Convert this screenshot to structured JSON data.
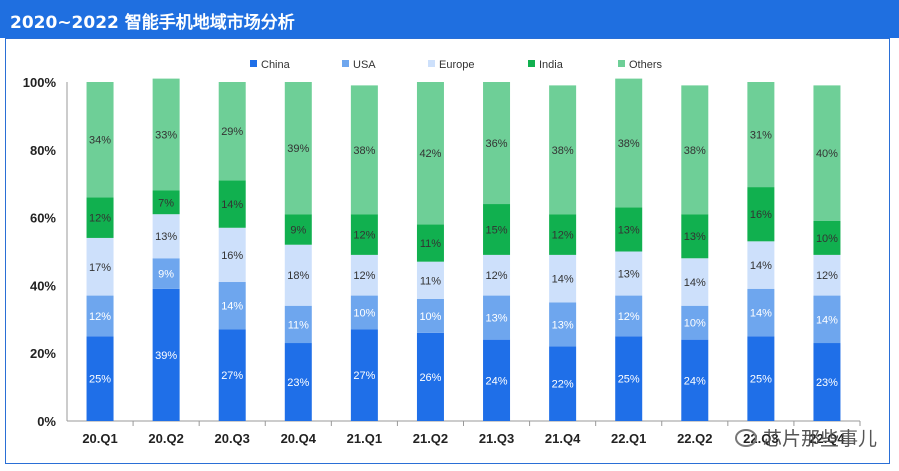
{
  "title": "2020~2022 智能手机地域市场分析",
  "watermark": "芯片那些事儿",
  "chart_data": {
    "type": "bar",
    "stacked": true,
    "percent": true,
    "categories": [
      "20.Q1",
      "20.Q2",
      "20.Q3",
      "20.Q4",
      "21.Q1",
      "21.Q2",
      "21.Q3",
      "21.Q4",
      "22.Q1",
      "22.Q2",
      "22.Q3",
      "22.Q4"
    ],
    "ylim": [
      0,
      100
    ],
    "yticks": [
      "0%",
      "20%",
      "40%",
      "60%",
      "80%",
      "100%"
    ],
    "legend_position": "top",
    "grid": false,
    "series": [
      {
        "name": "China",
        "color": "#1f6fe8",
        "label_color": "#ffffff",
        "values": [
          25,
          39,
          27,
          23,
          27,
          26,
          24,
          22,
          25,
          24,
          25,
          23
        ]
      },
      {
        "name": "USA",
        "color": "#6ea6ee",
        "label_color": "#ffffff",
        "values": [
          12,
          9,
          14,
          11,
          10,
          10,
          13,
          13,
          12,
          10,
          14,
          14
        ]
      },
      {
        "name": "Europe",
        "color": "#cde0fb",
        "label_color": "#333333",
        "values": [
          17,
          13,
          16,
          18,
          12,
          11,
          12,
          14,
          13,
          14,
          14,
          12
        ]
      },
      {
        "name": "India",
        "color": "#11b04f",
        "label_color": "#333333",
        "values": [
          12,
          7,
          14,
          9,
          12,
          11,
          15,
          12,
          13,
          13,
          16,
          10
        ]
      },
      {
        "name": "Others",
        "color": "#6ecf97",
        "label_color": "#333333",
        "values": [
          34,
          33,
          29,
          39,
          38,
          42,
          36,
          38,
          38,
          38,
          31,
          40
        ]
      }
    ]
  }
}
